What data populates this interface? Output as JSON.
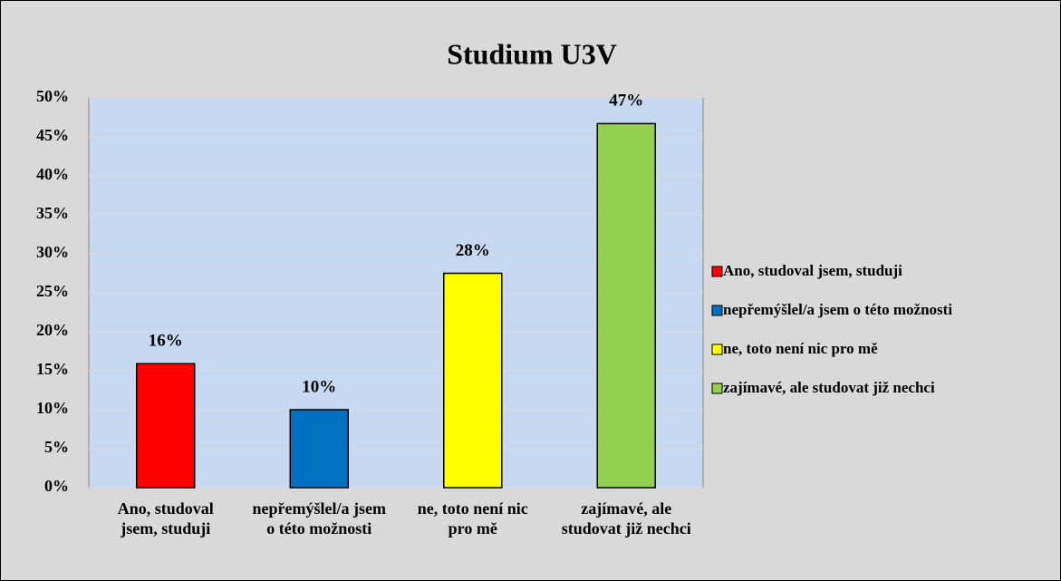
{
  "chart_data": {
    "type": "bar",
    "title": "Studium U3V",
    "categories": [
      "Ano, studoval jsem, studuji",
      "nepřemýšlel/a jsem o této možnosti",
      "ne, toto není nic pro mě",
      "zajímavé, ale studovat již nechci"
    ],
    "values": [
      15.9,
      10,
      27.5,
      46.7
    ],
    "value_labels": [
      "16%",
      "10%",
      "28%",
      "47%"
    ],
    "colors": [
      "#ff0000",
      "#0070c0",
      "#ffff00",
      "#92d050"
    ],
    "ylim": [
      0,
      50
    ],
    "yticks": [
      {
        "value": 0,
        "label": "0%"
      },
      {
        "value": 5,
        "label": "5%"
      },
      {
        "value": 10,
        "label": "10%"
      },
      {
        "value": 15,
        "label": "15%"
      },
      {
        "value": 20,
        "label": "20%"
      },
      {
        "value": 25,
        "label": "25%"
      },
      {
        "value": 30,
        "label": "30%"
      },
      {
        "value": 35,
        "label": "35%"
      },
      {
        "value": 40,
        "label": "40%"
      },
      {
        "value": 45,
        "label": "45%"
      },
      {
        "value": 50,
        "label": "50%"
      }
    ],
    "grid": true,
    "legend": "right"
  }
}
